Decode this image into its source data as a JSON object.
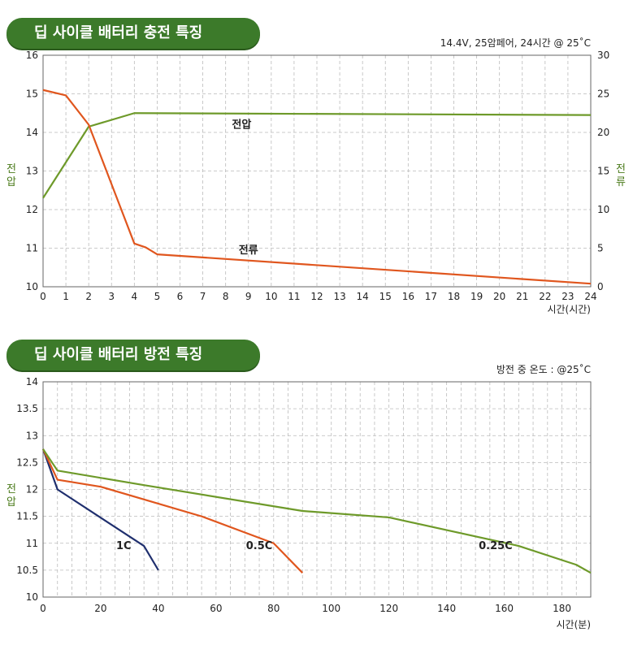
{
  "chart_data": [
    {
      "type": "line",
      "title": "딥 사이클 배터리 충전 특징",
      "subtitle": "14.4V, 25암페어, 24시간 @ 25˚C",
      "xlabel": "시간(시간)",
      "ylabel_left": "전압",
      "ylabel_right": "전류",
      "xlim": [
        0,
        24
      ],
      "ylim_left": [
        10,
        16
      ],
      "ylim_right": [
        0,
        30
      ],
      "xticks": [
        "0",
        "1",
        "2",
        "3",
        "4",
        "5",
        "6",
        "7",
        "8",
        "9",
        "10",
        "11",
        "12",
        "13",
        "14",
        "15",
        "16",
        "17",
        "18",
        "19",
        "20",
        "21",
        "22",
        "23",
        "24"
      ],
      "yticks_left": [
        "10",
        "11",
        "12",
        "13",
        "14",
        "15",
        "16"
      ],
      "yticks_right": [
        "0",
        "5",
        "10",
        "15",
        "20",
        "25",
        "30"
      ],
      "grid": true,
      "series": [
        {
          "name": "전압",
          "axis": "left",
          "color": "#6e9a2a",
          "x": [
            0,
            2,
            4,
            24
          ],
          "y": [
            12.3,
            14.15,
            14.5,
            14.45
          ]
        },
        {
          "name": "전류",
          "axis": "right",
          "color": "#e0561e",
          "x": [
            0,
            1,
            2,
            4,
            4.5,
            5,
            24
          ],
          "y": [
            25.5,
            24.8,
            21,
            5.6,
            5.1,
            4.2,
            0.4
          ]
        }
      ]
    },
    {
      "type": "line",
      "title": "딥 사이클 배터리 방전 특징",
      "subtitle": "방전 중 온도 : @25˚C",
      "xlabel": "시간(분)",
      "ylabel": "전압",
      "xlim": [
        0,
        190
      ],
      "ylim": [
        10,
        14
      ],
      "xticks": [
        "0",
        "20",
        "40",
        "60",
        "80",
        "100",
        "120",
        "140",
        "160",
        "180"
      ],
      "xtick_values": [
        0,
        20,
        40,
        60,
        80,
        100,
        120,
        140,
        160,
        180
      ],
      "yticks": [
        "10",
        "10.5",
        "11",
        "11.5",
        "12",
        "12.5",
        "13",
        "13.5",
        "14"
      ],
      "ytick_values": [
        10,
        10.5,
        11,
        11.5,
        12,
        12.5,
        13,
        13.5,
        14
      ],
      "grid": true,
      "series": [
        {
          "name": "1C",
          "color": "#1f2f6e",
          "x": [
            0,
            5,
            35,
            40
          ],
          "y": [
            12.75,
            12.0,
            10.95,
            10.5
          ]
        },
        {
          "name": "0.5C",
          "color": "#e0561e",
          "x": [
            0,
            5,
            20,
            55,
            80,
            90
          ],
          "y": [
            12.75,
            12.18,
            12.05,
            11.5,
            11.0,
            10.45
          ]
        },
        {
          "name": "0.25C",
          "color": "#6e9a2a",
          "x": [
            0,
            5,
            35,
            90,
            120,
            165,
            185,
            190
          ],
          "y": [
            12.75,
            12.35,
            12.08,
            11.6,
            11.48,
            10.95,
            10.6,
            10.45
          ]
        }
      ]
    }
  ]
}
